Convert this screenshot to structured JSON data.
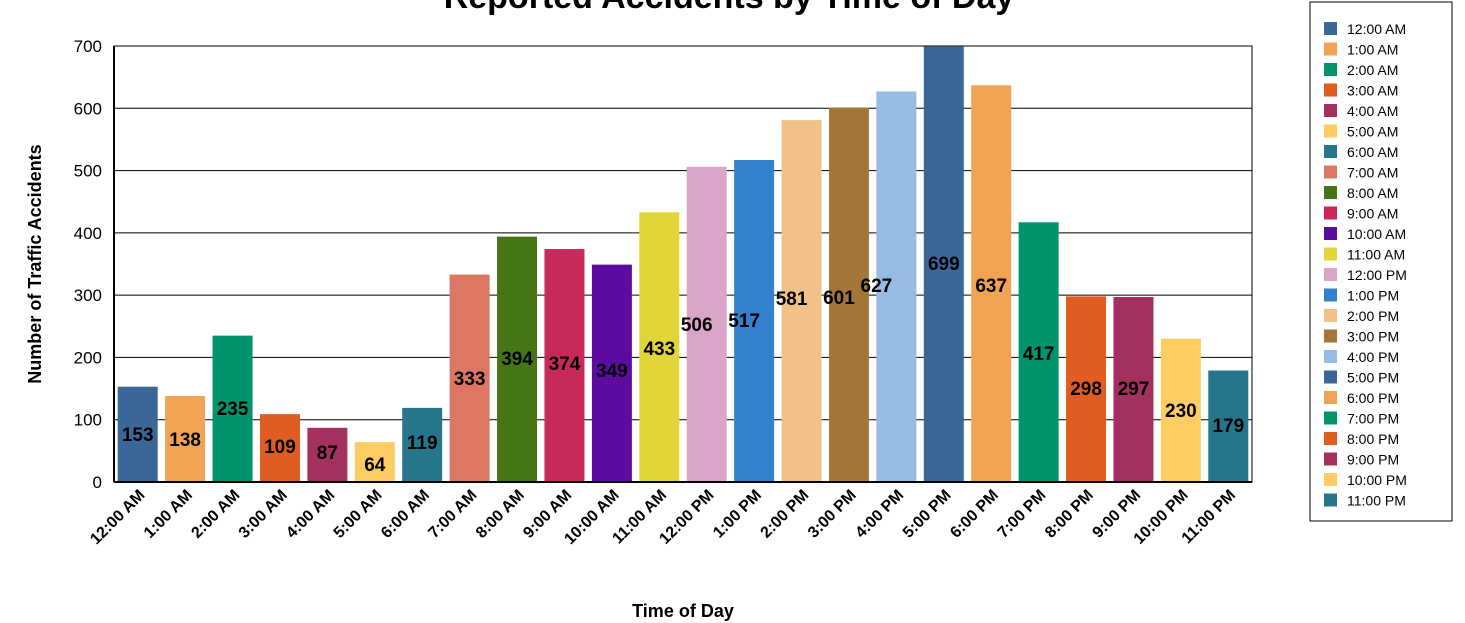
{
  "chart_data": {
    "type": "bar",
    "title": "Reported Accidents by Time of Day",
    "xlabel": "Time of Day",
    "ylabel": "Number of Traffic Accidents",
    "ylim": [
      0,
      700
    ],
    "yticks": [
      0,
      100,
      200,
      300,
      400,
      500,
      600,
      700
    ],
    "grid": true,
    "legend_position": "right",
    "categories": [
      "12:00 AM",
      "1:00 AM",
      "2:00 AM",
      "3:00 AM",
      "4:00 AM",
      "5:00 AM",
      "6:00 AM",
      "7:00 AM",
      "8:00 AM",
      "9:00 AM",
      "10:00 AM",
      "11:00 AM",
      "12:00 PM",
      "1:00 PM",
      "2:00 PM",
      "3:00 PM",
      "4:00 PM",
      "5:00 PM",
      "6:00 PM",
      "7:00 PM",
      "8:00 PM",
      "9:00 PM",
      "10:00 PM",
      "11:00 PM"
    ],
    "values": [
      153,
      138,
      235,
      109,
      87,
      64,
      119,
      333,
      394,
      374,
      349,
      433,
      506,
      517,
      581,
      601,
      627,
      699,
      637,
      417,
      298,
      297,
      230,
      179
    ],
    "data_label_offsets": [
      104,
      67,
      -48,
      45,
      68,
      70,
      71,
      -60,
      -95,
      -50,
      -19,
      -46,
      -44,
      6,
      36,
      55,
      61,
      79,
      36,
      -105,
      -91,
      -90,
      -58,
      -82
    ],
    "colors": [
      "#3a6698",
      "#f0a453",
      "#00946d",
      "#e05c22",
      "#a3305f",
      "#fdcc62",
      "#25758b",
      "#de7664",
      "#457515",
      "#c72a58",
      "#5c0ba1",
      "#e2d53a",
      "#daa5c8",
      "#3480cd",
      "#f1c187",
      "#a47637",
      "#97bbe3",
      "#3a6698",
      "#f0a453",
      "#00946d",
      "#e05c22",
      "#a3305f",
      "#fdcc62",
      "#25758b"
    ]
  }
}
